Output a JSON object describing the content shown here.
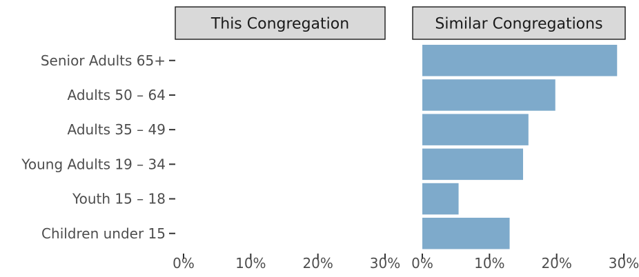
{
  "chart_data": {
    "type": "bar",
    "orientation": "horizontal",
    "facets": [
      "This Congregation",
      "Similar Congregations"
    ],
    "categories": [
      "Senior Adults 65+",
      "Adults 50 – 64",
      "Adults 35 – 49",
      "Young Adults 19 – 34",
      "Youth 15 – 18",
      "Children under 15"
    ],
    "series": [
      {
        "facet": "This Congregation",
        "values": [
          0,
          0,
          0,
          0,
          0,
          0
        ]
      },
      {
        "facet": "Similar Congregations",
        "values": [
          29.0,
          19.8,
          15.8,
          15.0,
          5.4,
          13.0
        ]
      }
    ],
    "xlim": [
      0,
      30
    ],
    "x_ticks": [
      0,
      10,
      20,
      30
    ],
    "x_tick_labels": [
      "0%",
      "10%",
      "20%",
      "30%"
    ],
    "bar_color": "#7eaacb",
    "strip_color": "#d9d9d9",
    "grid": false,
    "legend": "none"
  }
}
